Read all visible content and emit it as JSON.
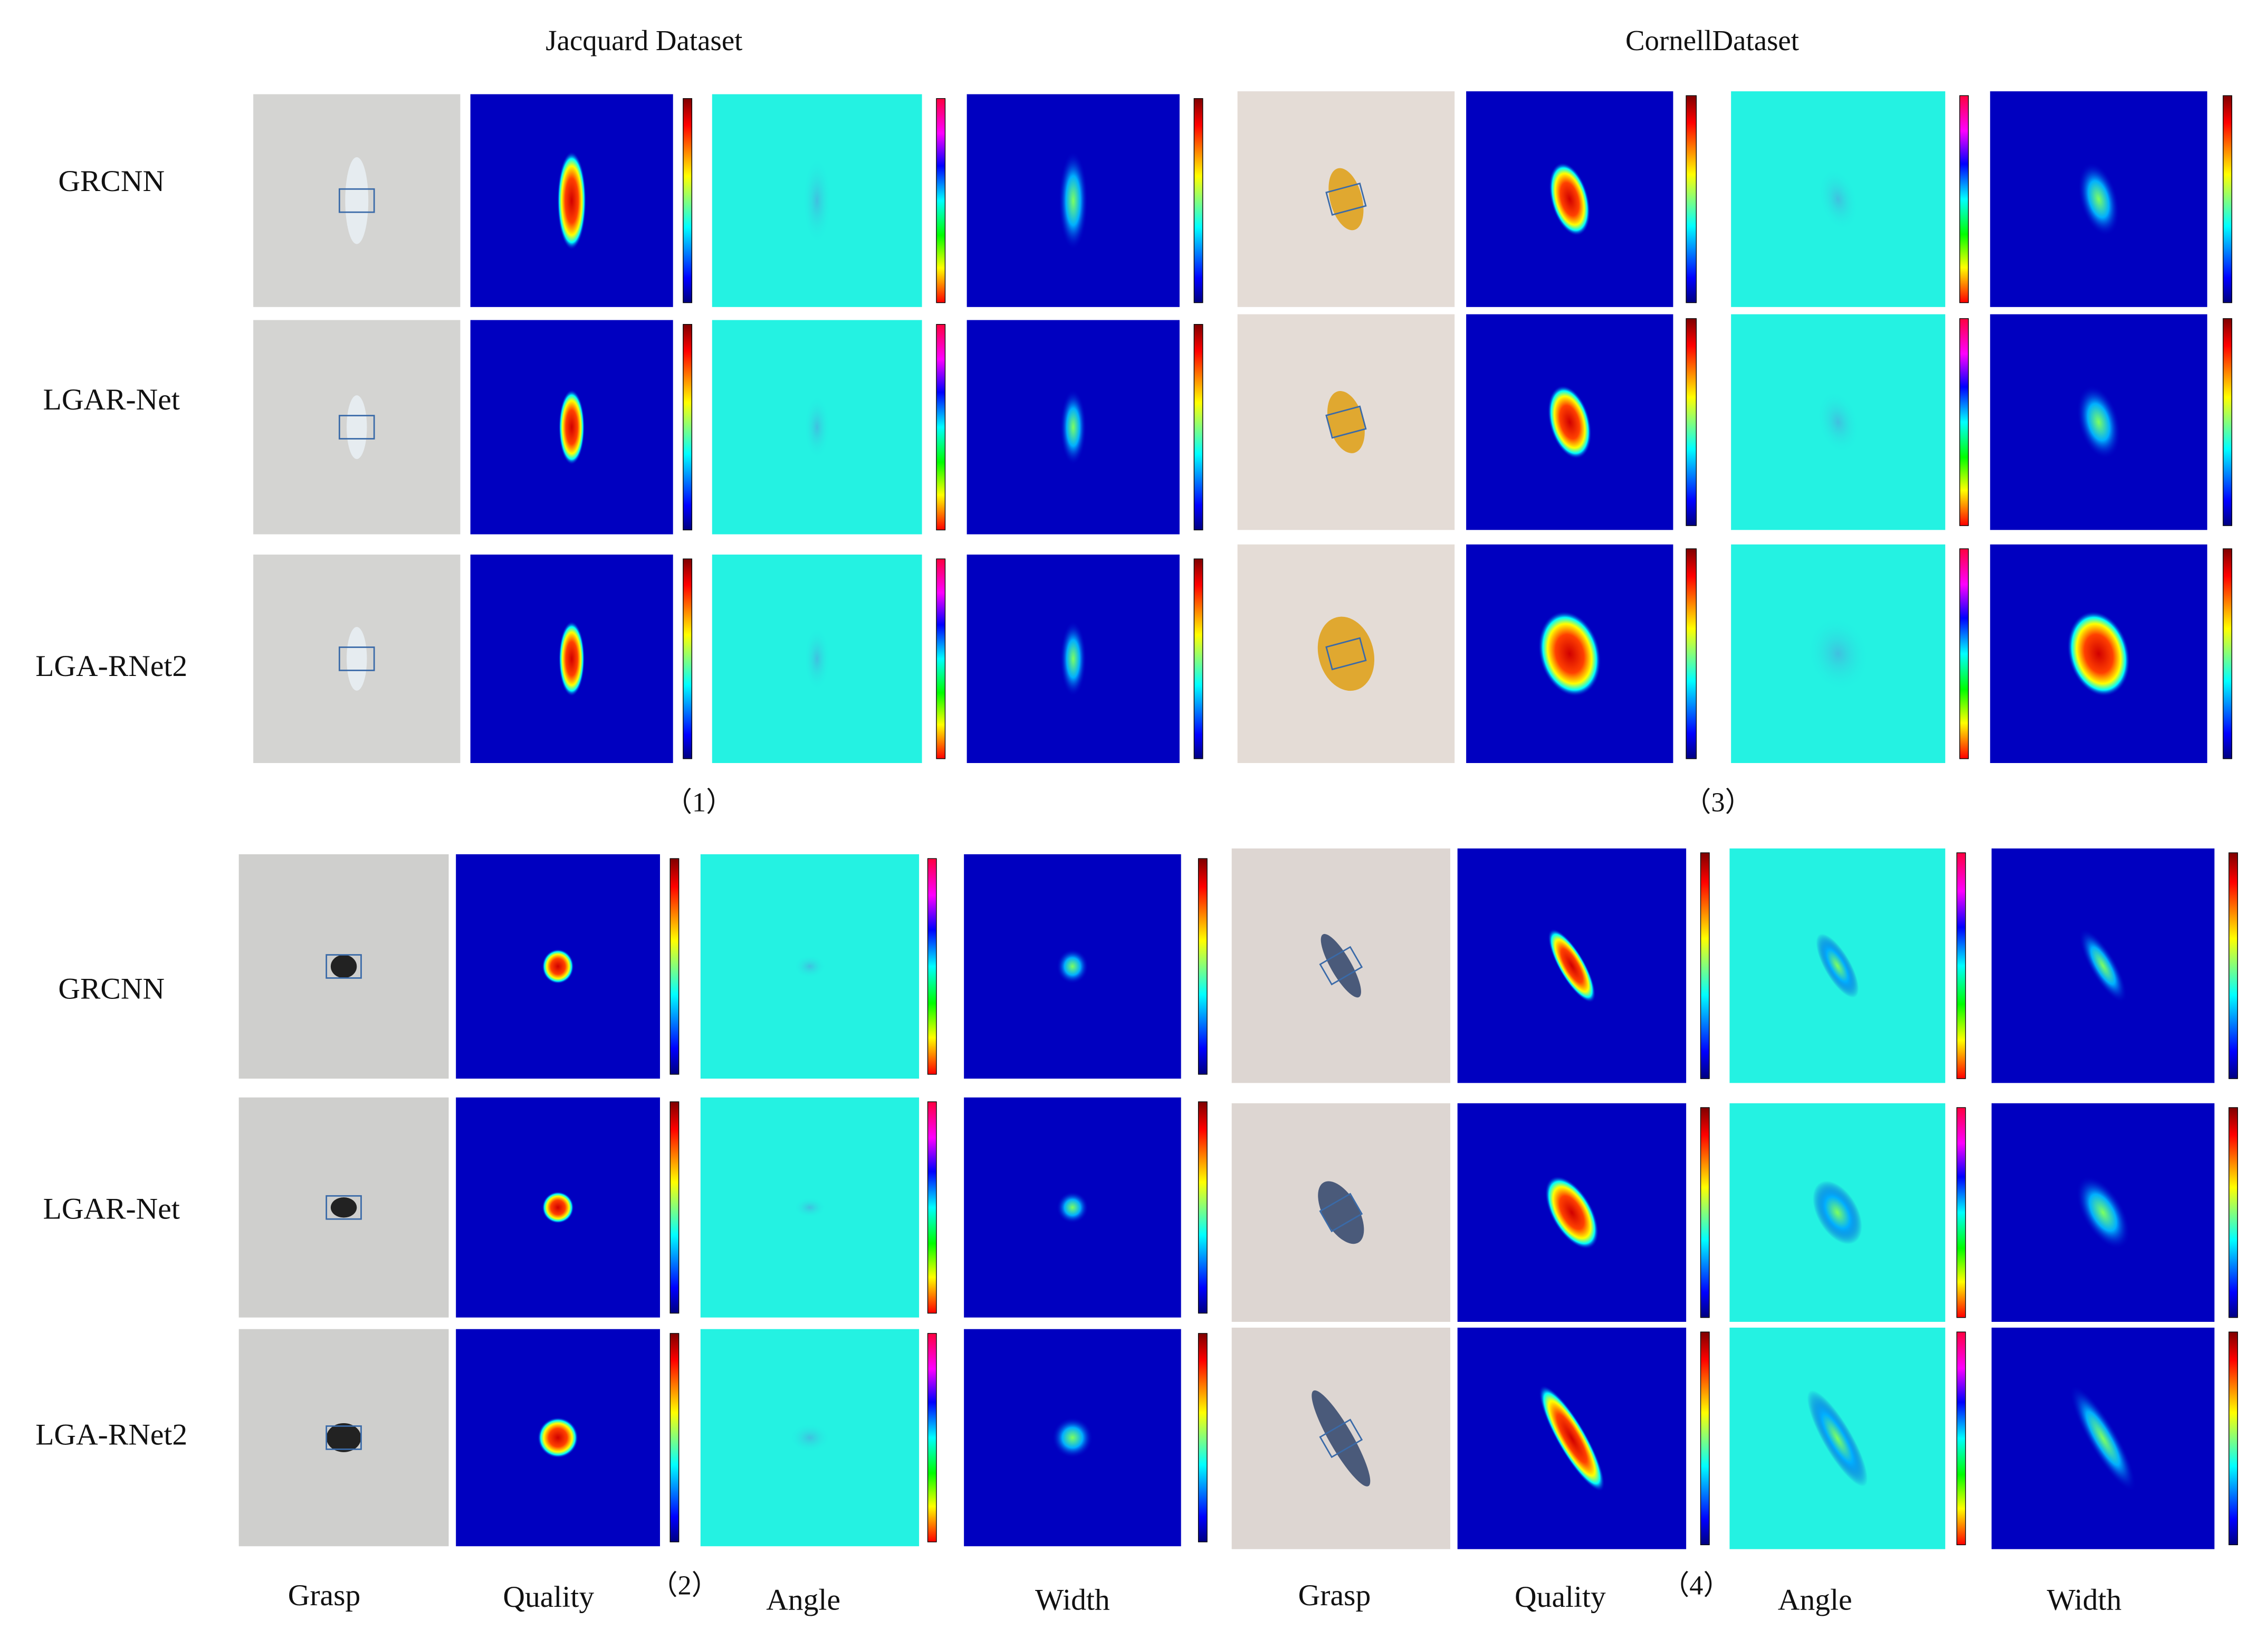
{
  "titles": [
    "Jacquard Dataset",
    "CornellDataset"
  ],
  "row_groups": [
    {
      "labels": [
        "GRCNN",
        "LGAR-Net",
        "LGA-RNet2"
      ]
    },
    {
      "labels": [
        "GRCNN",
        "LGAR-Net",
        "LGA-RNet2"
      ]
    }
  ],
  "panel_labels": [
    "（1）",
    "（3）",
    "（2）",
    "（4）"
  ],
  "column_labels": [
    [
      "Grasp",
      "Quality",
      "Angle",
      "Width"
    ],
    [
      "Grasp",
      "Quality",
      "Angle",
      "Width"
    ]
  ]
}
